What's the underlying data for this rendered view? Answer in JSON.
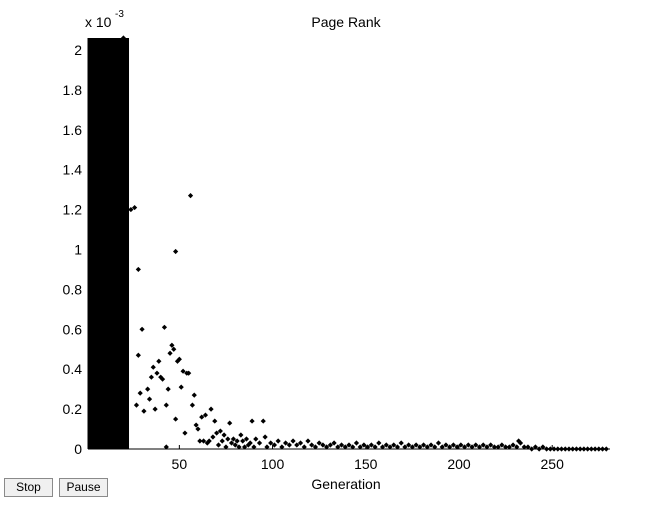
{
  "controls": {
    "stop_label": "Stop",
    "pause_label": "Pause"
  },
  "chart_data": {
    "type": "scatter",
    "title": "Page Rank",
    "xlabel": "Generation",
    "ylabel": "",
    "y_multiplier_base": "x 10",
    "y_multiplier_exp": "-3",
    "xlim": [
      1,
      281
    ],
    "ylim": [
      0,
      2.06
    ],
    "x_ticks": [
      50,
      100,
      150,
      200,
      250
    ],
    "y_ticks": [
      0,
      0.2,
      0.4,
      0.6,
      0.8,
      1,
      1.2,
      1.4,
      1.6,
      1.8,
      2
    ],
    "marker": "diamond",
    "colors": {
      "points": "#000000",
      "dense_band": "#000000"
    },
    "dense_band": {
      "x_range": [
        1,
        23
      ],
      "y_range": [
        0,
        2.06
      ]
    },
    "series": [
      {
        "values": [
          [
            20,
            2.06
          ],
          [
            24,
            1.2
          ],
          [
            26,
            1.21
          ],
          [
            28,
            0.9
          ],
          [
            30,
            0.6
          ],
          [
            28,
            0.47
          ],
          [
            27,
            0.22
          ],
          [
            29,
            0.28
          ],
          [
            31,
            0.19
          ],
          [
            33,
            0.3
          ],
          [
            34,
            0.25
          ],
          [
            35,
            0.36
          ],
          [
            36,
            0.41
          ],
          [
            37,
            0.2
          ],
          [
            38,
            0.38
          ],
          [
            39,
            0.44
          ],
          [
            40,
            0.36
          ],
          [
            41,
            0.35
          ],
          [
            42,
            0.61
          ],
          [
            43,
            0.22
          ],
          [
            44,
            0.3
          ],
          [
            43,
            0.01
          ],
          [
            45,
            0.48
          ],
          [
            46,
            0.52
          ],
          [
            47,
            0.5
          ],
          [
            48,
            0.99
          ],
          [
            48,
            0.15
          ],
          [
            49,
            0.44
          ],
          [
            50,
            0.45
          ],
          [
            51,
            0.31
          ],
          [
            52,
            0.39
          ],
          [
            53,
            0.08
          ],
          [
            54,
            0.38
          ],
          [
            55,
            0.38
          ],
          [
            56,
            1.27
          ],
          [
            57,
            0.22
          ],
          [
            58,
            0.27
          ],
          [
            59,
            0.12
          ],
          [
            60,
            0.1
          ],
          [
            61,
            0.04
          ],
          [
            62,
            0.16
          ],
          [
            63,
            0.04
          ],
          [
            64,
            0.17
          ],
          [
            65,
            0.03
          ],
          [
            66,
            0.04
          ],
          [
            67,
            0.2
          ],
          [
            68,
            0.06
          ],
          [
            69,
            0.14
          ],
          [
            70,
            0.08
          ],
          [
            71,
            0.02
          ],
          [
            72,
            0.09
          ],
          [
            73,
            0.04
          ],
          [
            74,
            0.07
          ],
          [
            75,
            0.01
          ],
          [
            76,
            0.05
          ],
          [
            77,
            0.13
          ],
          [
            78,
            0.03
          ],
          [
            79,
            0.05
          ],
          [
            80,
            0.02
          ],
          [
            81,
            0.04
          ],
          [
            82,
            0.01
          ],
          [
            83,
            0.07
          ],
          [
            84,
            0.04
          ],
          [
            85,
            0.01
          ],
          [
            86,
            0.05
          ],
          [
            87,
            0.02
          ],
          [
            88,
            0.03
          ],
          [
            89,
            0.14
          ],
          [
            90,
            0.01
          ],
          [
            91,
            0.05
          ],
          [
            93,
            0.03
          ],
          [
            95,
            0.14
          ],
          [
            96,
            0.06
          ],
          [
            97,
            0.01
          ],
          [
            99,
            0.03
          ],
          [
            101,
            0.02
          ],
          [
            103,
            0.04
          ],
          [
            105,
            0.01
          ],
          [
            107,
            0.03
          ],
          [
            109,
            0.02
          ],
          [
            111,
            0.04
          ],
          [
            113,
            0.02
          ],
          [
            115,
            0.03
          ],
          [
            117,
            0.01
          ],
          [
            119,
            0.04
          ],
          [
            121,
            0.02
          ],
          [
            123,
            0.01
          ],
          [
            125,
            0.03
          ],
          [
            127,
            0.02
          ],
          [
            129,
            0.01
          ],
          [
            131,
            0.02
          ],
          [
            133,
            0.03
          ],
          [
            135,
            0.01
          ],
          [
            137,
            0.02
          ],
          [
            139,
            0.01
          ],
          [
            141,
            0.02
          ],
          [
            143,
            0.01
          ],
          [
            145,
            0.03
          ],
          [
            147,
            0.01
          ],
          [
            149,
            0.02
          ],
          [
            151,
            0.01
          ],
          [
            153,
            0.02
          ],
          [
            155,
            0.01
          ],
          [
            157,
            0.03
          ],
          [
            159,
            0.01
          ],
          [
            161,
            0.02
          ],
          [
            163,
            0.01
          ],
          [
            165,
            0.02
          ],
          [
            167,
            0.01
          ],
          [
            169,
            0.03
          ],
          [
            171,
            0.01
          ],
          [
            173,
            0.02
          ],
          [
            175,
            0.01
          ],
          [
            177,
            0.02
          ],
          [
            179,
            0.01
          ],
          [
            181,
            0.02
          ],
          [
            183,
            0.01
          ],
          [
            185,
            0.02
          ],
          [
            187,
            0.01
          ],
          [
            189,
            0.03
          ],
          [
            191,
            0.01
          ],
          [
            193,
            0.02
          ],
          [
            195,
            0.01
          ],
          [
            197,
            0.02
          ],
          [
            199,
            0.01
          ],
          [
            201,
            0.02
          ],
          [
            203,
            0.01
          ],
          [
            205,
            0.02
          ],
          [
            207,
            0.01
          ],
          [
            209,
            0.02
          ],
          [
            211,
            0.01
          ],
          [
            213,
            0.02
          ],
          [
            215,
            0.01
          ],
          [
            217,
            0.02
          ],
          [
            219,
            0.01
          ],
          [
            221,
            0.01
          ],
          [
            223,
            0.02
          ],
          [
            225,
            0.01
          ],
          [
            227,
            0.01
          ],
          [
            229,
            0.02
          ],
          [
            231,
            0.01
          ],
          [
            232,
            0.04
          ],
          [
            233,
            0.03
          ],
          [
            235,
            0.01
          ],
          [
            237,
            0.01
          ],
          [
            239,
            0.0
          ],
          [
            241,
            0.01
          ],
          [
            243,
            0.0
          ],
          [
            245,
            0.01
          ],
          [
            247,
            0.0
          ],
          [
            249,
            0.0
          ],
          [
            251,
            0.0
          ],
          [
            253,
            0.0
          ],
          [
            255,
            0.0
          ],
          [
            257,
            0.0
          ],
          [
            259,
            0.0
          ],
          [
            261,
            0.0
          ],
          [
            263,
            0.0
          ],
          [
            265,
            0.0
          ],
          [
            267,
            0.0
          ],
          [
            269,
            0.0
          ],
          [
            271,
            0.0
          ],
          [
            273,
            0.0
          ],
          [
            275,
            0.0
          ],
          [
            277,
            0.0
          ],
          [
            279,
            0.0
          ]
        ]
      }
    ]
  }
}
